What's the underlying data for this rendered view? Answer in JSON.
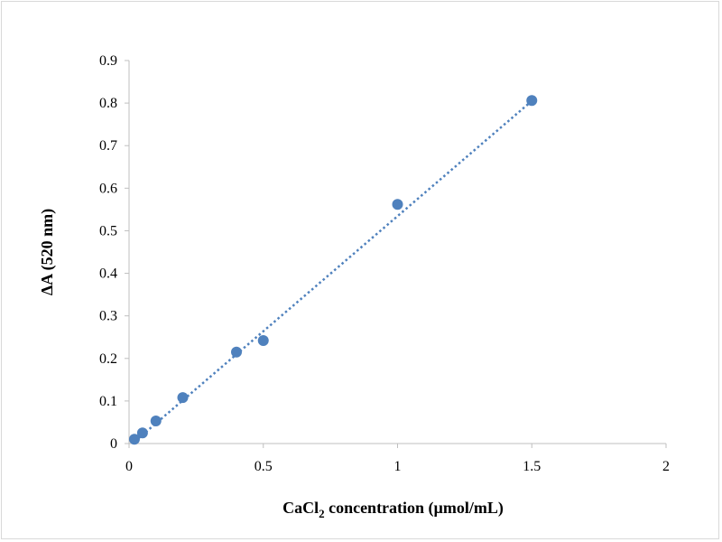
{
  "chart_data": {
    "type": "scatter",
    "title": "",
    "xlabel": "CaCl",
    "xlabel_subscript": "2",
    "xlabel_suffix": " concentration (µmol/mL)",
    "ylabel": "ΔA (520 nm)",
    "xlim": [
      0,
      2
    ],
    "ylim": [
      0,
      0.9
    ],
    "x_ticks": [
      "0",
      "0.5",
      "1",
      "1.5",
      "2"
    ],
    "y_ticks": [
      "0",
      "0.1",
      "0.2",
      "0.3",
      "0.4",
      "0.5",
      "0.6",
      "0.7",
      "0.8",
      "0.9"
    ],
    "grid": false,
    "legend": "none",
    "series": [
      {
        "color": "#4f81bd",
        "x": [
          0.02,
          0.05,
          0.1,
          0.2,
          0.4,
          0.5,
          1.0,
          1.5
        ],
        "y": [
          0.01,
          0.025,
          0.053,
          0.108,
          0.215,
          0.242,
          0.562,
          0.806
        ]
      }
    ],
    "trendline": {
      "type": "linear",
      "style": "dotted",
      "color": "#4f81bd",
      "x": [
        0.02,
        1.5
      ],
      "y": [
        0.004,
        0.805
      ]
    }
  }
}
